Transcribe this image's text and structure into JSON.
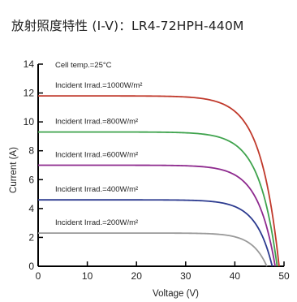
{
  "page": {
    "title": "放射照度特性 (I-V)：LR4-72HPH-440M"
  },
  "chart_data": {
    "type": "line",
    "xlabel": "Voltage (V)",
    "ylabel": "Current (A)",
    "xlim": [
      0,
      50
    ],
    "ylim": [
      0,
      14
    ],
    "xticks": [
      0,
      10,
      20,
      30,
      40,
      50
    ],
    "yticks": [
      0,
      2,
      4,
      6,
      8,
      10,
      12,
      14
    ],
    "grid": false,
    "note": "Cell temp.=25°C",
    "series": [
      {
        "name": "Incident Irrad.=1000W/m²",
        "color": "#c0392b",
        "isc": 11.8,
        "knee_v": 37,
        "voc": 49.0
      },
      {
        "name": "Incident Irrad.=800W/m²",
        "color": "#3fa34d",
        "isc": 9.3,
        "knee_v": 37,
        "voc": 48.6
      },
      {
        "name": "Incident Irrad.=600W/m²",
        "color": "#8e2a8e",
        "isc": 7.0,
        "knee_v": 37,
        "voc": 48.2
      },
      {
        "name": "Incident Irrad.=400W/m²",
        "color": "#2b3a8f",
        "isc": 4.6,
        "knee_v": 37,
        "voc": 47.6
      },
      {
        "name": "Incident Irrad.=200W/m²",
        "color": "#9a9a9a",
        "isc": 2.3,
        "knee_v": 37,
        "voc": 46.5
      }
    ]
  }
}
